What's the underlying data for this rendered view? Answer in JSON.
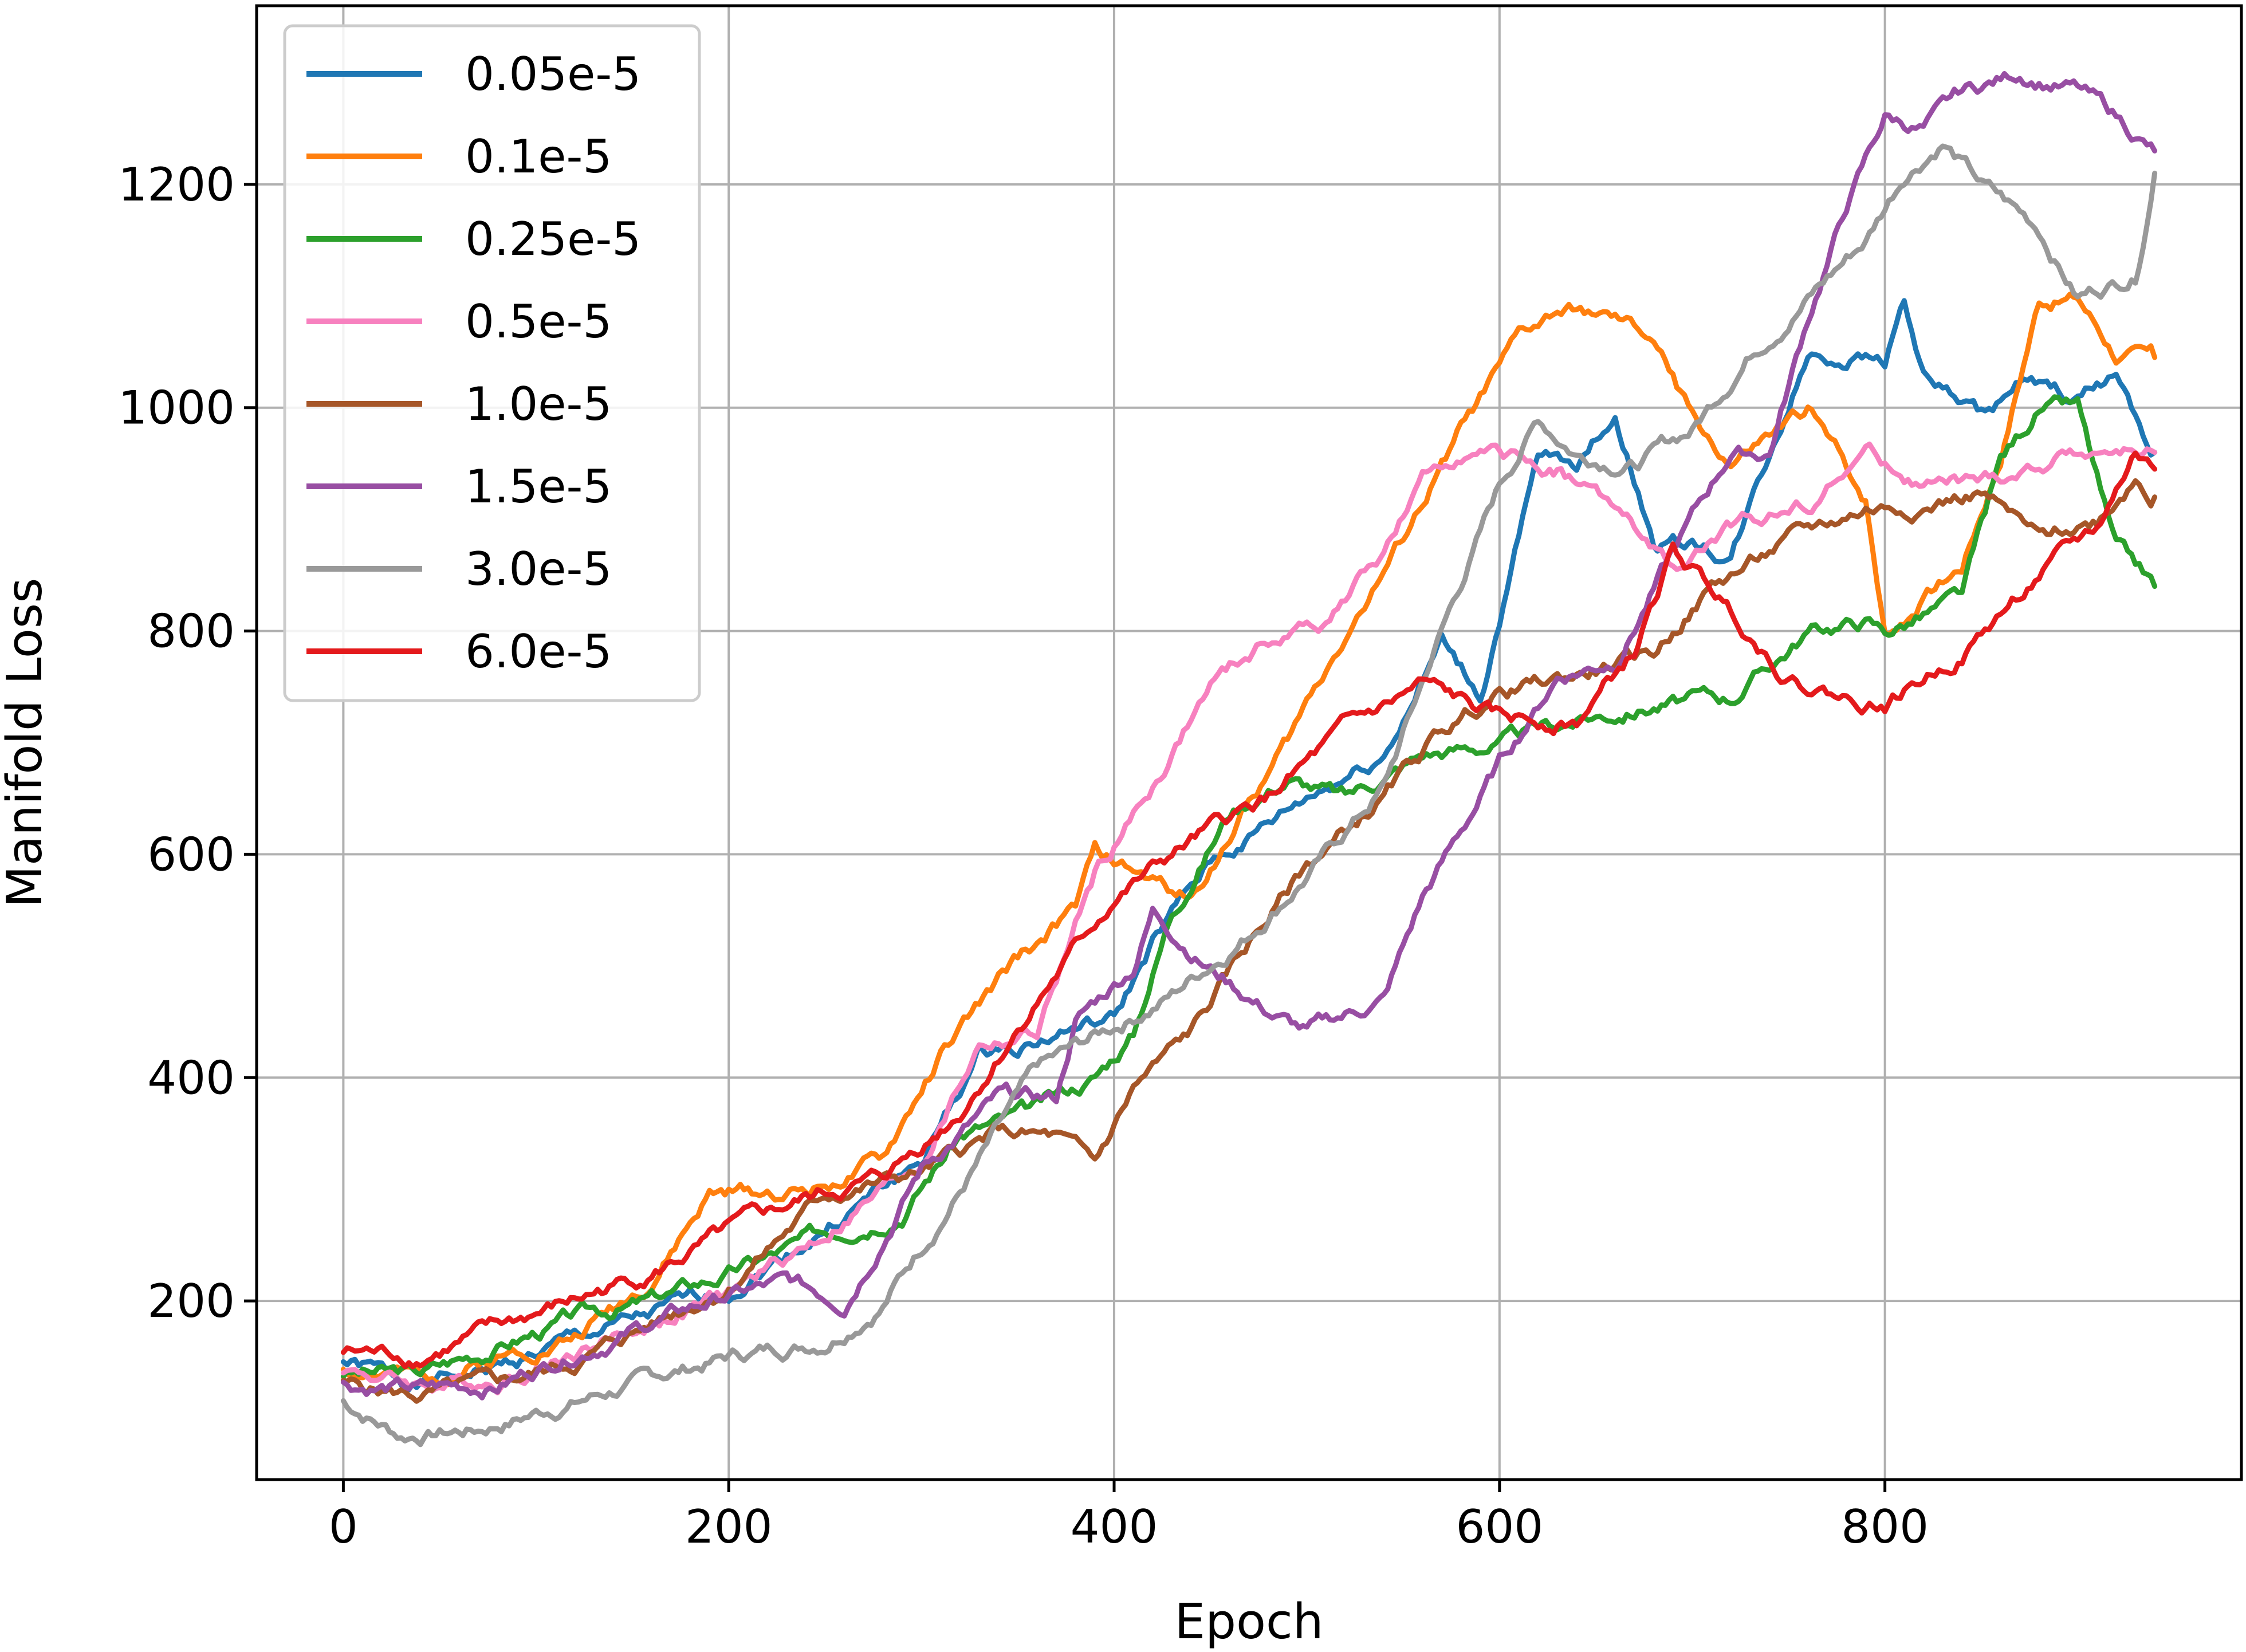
{
  "chart_data": {
    "type": "line",
    "title": "",
    "xlabel": "Epoch",
    "ylabel": "Manifold Loss",
    "xlim": [
      -45,
      985
    ],
    "ylim": [
      40,
      1360
    ],
    "xticks": [
      0,
      200,
      400,
      600,
      800
    ],
    "yticks": [
      200,
      400,
      600,
      800,
      1000,
      1200
    ],
    "grid": true,
    "legend_position": "top-left",
    "series": [
      {
        "name": "0.05e-5",
        "color": "#1f77b4",
        "points": [
          [
            0,
            145
          ],
          [
            40,
            125
          ],
          [
            80,
            140
          ],
          [
            120,
            165
          ],
          [
            160,
            185
          ],
          [
            200,
            210
          ],
          [
            250,
            265
          ],
          [
            300,
            325
          ],
          [
            330,
            420
          ],
          [
            350,
            430
          ],
          [
            380,
            445
          ],
          [
            400,
            450
          ],
          [
            420,
            520
          ],
          [
            450,
            590
          ],
          [
            500,
            650
          ],
          [
            540,
            690
          ],
          [
            570,
            790
          ],
          [
            590,
            740
          ],
          [
            620,
            950
          ],
          [
            640,
            950
          ],
          [
            660,
            995
          ],
          [
            680,
            880
          ],
          [
            700,
            880
          ],
          [
            720,
            865
          ],
          [
            760,
            1050
          ],
          [
            800,
            1045
          ],
          [
            810,
            1100
          ],
          [
            820,
            1030
          ],
          [
            850,
            990
          ],
          [
            870,
            1020
          ],
          [
            900,
            1005
          ],
          [
            920,
            1030
          ],
          [
            940,
            960
          ]
        ]
      },
      {
        "name": "0.1e-5",
        "color": "#ff7f0e",
        "points": [
          [
            0,
            140
          ],
          [
            40,
            130
          ],
          [
            80,
            150
          ],
          [
            120,
            170
          ],
          [
            160,
            220
          ],
          [
            190,
            295
          ],
          [
            240,
            300
          ],
          [
            280,
            325
          ],
          [
            310,
            420
          ],
          [
            350,
            505
          ],
          [
            380,
            550
          ],
          [
            390,
            600
          ],
          [
            420,
            575
          ],
          [
            440,
            560
          ],
          [
            460,
            620
          ],
          [
            490,
            700
          ],
          [
            520,
            800
          ],
          [
            550,
            880
          ],
          [
            580,
            980
          ],
          [
            610,
            1060
          ],
          [
            630,
            1085
          ],
          [
            650,
            1085
          ],
          [
            680,
            1060
          ],
          [
            700,
            990
          ],
          [
            720,
            950
          ],
          [
            760,
            995
          ],
          [
            790,
            920
          ],
          [
            800,
            800
          ],
          [
            840,
            860
          ],
          [
            860,
            960
          ],
          [
            880,
            1100
          ],
          [
            900,
            1100
          ],
          [
            920,
            1050
          ],
          [
            940,
            1045
          ]
        ]
      },
      {
        "name": "0.25e-5",
        "color": "#2ca02c",
        "points": [
          [
            0,
            135
          ],
          [
            40,
            135
          ],
          [
            80,
            160
          ],
          [
            120,
            185
          ],
          [
            160,
            200
          ],
          [
            200,
            225
          ],
          [
            250,
            260
          ],
          [
            290,
            285
          ],
          [
            320,
            350
          ],
          [
            360,
            370
          ],
          [
            390,
            400
          ],
          [
            410,
            440
          ],
          [
            430,
            550
          ],
          [
            460,
            640
          ],
          [
            490,
            670
          ],
          [
            520,
            650
          ],
          [
            560,
            690
          ],
          [
            600,
            700
          ],
          [
            640,
            720
          ],
          [
            680,
            735
          ],
          [
            720,
            740
          ],
          [
            760,
            800
          ],
          [
            790,
            810
          ],
          [
            800,
            800
          ],
          [
            840,
            830
          ],
          [
            860,
            950
          ],
          [
            880,
            1000
          ],
          [
            900,
            1000
          ],
          [
            920,
            870
          ],
          [
            940,
            840
          ]
        ]
      },
      {
        "name": "0.5e-5",
        "color": "#f781bf",
        "points": [
          [
            0,
            140
          ],
          [
            40,
            125
          ],
          [
            80,
            130
          ],
          [
            120,
            155
          ],
          [
            160,
            180
          ],
          [
            200,
            205
          ],
          [
            250,
            260
          ],
          [
            300,
            325
          ],
          [
            330,
            430
          ],
          [
            360,
            440
          ],
          [
            390,
            580
          ],
          [
            420,
            660
          ],
          [
            450,
            750
          ],
          [
            480,
            790
          ],
          [
            510,
            810
          ],
          [
            540,
            870
          ],
          [
            560,
            930
          ],
          [
            580,
            960
          ],
          [
            600,
            955
          ],
          [
            630,
            945
          ],
          [
            660,
            910
          ],
          [
            690,
            850
          ],
          [
            720,
            890
          ],
          [
            760,
            915
          ],
          [
            790,
            960
          ],
          [
            820,
            930
          ],
          [
            850,
            930
          ],
          [
            880,
            945
          ],
          [
            900,
            960
          ],
          [
            940,
            960
          ]
        ]
      },
      {
        "name": "1.0e-5",
        "color": "#a65628",
        "points": [
          [
            0,
            125
          ],
          [
            40,
            115
          ],
          [
            80,
            125
          ],
          [
            120,
            145
          ],
          [
            160,
            180
          ],
          [
            200,
            215
          ],
          [
            250,
            295
          ],
          [
            300,
            315
          ],
          [
            340,
            350
          ],
          [
            370,
            345
          ],
          [
            390,
            320
          ],
          [
            410,
            390
          ],
          [
            440,
            440
          ],
          [
            470,
            520
          ],
          [
            500,
            590
          ],
          [
            540,
            650
          ],
          [
            570,
            710
          ],
          [
            600,
            745
          ],
          [
            640,
            760
          ],
          [
            680,
            780
          ],
          [
            710,
            840
          ],
          [
            750,
            880
          ],
          [
            790,
            910
          ],
          [
            820,
            915
          ],
          [
            850,
            925
          ],
          [
            880,
            880
          ],
          [
            910,
            900
          ],
          [
            930,
            940
          ],
          [
            940,
            920
          ]
        ]
      },
      {
        "name": "1.5e-5",
        "color": "#984ea3",
        "points": [
          [
            0,
            125
          ],
          [
            40,
            120
          ],
          [
            80,
            125
          ],
          [
            120,
            155
          ],
          [
            160,
            180
          ],
          [
            200,
            205
          ],
          [
            230,
            215
          ],
          [
            260,
            200
          ],
          [
            300,
            320
          ],
          [
            340,
            380
          ],
          [
            370,
            380
          ],
          [
            380,
            450
          ],
          [
            410,
            500
          ],
          [
            420,
            550
          ],
          [
            450,
            500
          ],
          [
            480,
            460
          ],
          [
            500,
            440
          ],
          [
            540,
            470
          ],
          [
            560,
            560
          ],
          [
            600,
            680
          ],
          [
            630,
            760
          ],
          [
            660,
            775
          ],
          [
            690,
            870
          ],
          [
            720,
            960
          ],
          [
            740,
            960
          ],
          [
            760,
            1080
          ],
          [
            780,
            1180
          ],
          [
            800,
            1260
          ],
          [
            820,
            1250
          ],
          [
            840,
            1280
          ],
          [
            870,
            1300
          ],
          [
            900,
            1285
          ],
          [
            920,
            1260
          ],
          [
            940,
            1230
          ]
        ]
      },
      {
        "name": "3.0e-5",
        "color": "#999999",
        "points": [
          [
            0,
            110
          ],
          [
            30,
            80
          ],
          [
            70,
            85
          ],
          [
            110,
            105
          ],
          [
            150,
            125
          ],
          [
            200,
            150
          ],
          [
            250,
            165
          ],
          [
            280,
            200
          ],
          [
            320,
            300
          ],
          [
            360,
            405
          ],
          [
            400,
            445
          ],
          [
            430,
            475
          ],
          [
            470,
            530
          ],
          [
            510,
            600
          ],
          [
            540,
            660
          ],
          [
            570,
            800
          ],
          [
            600,
            930
          ],
          [
            620,
            990
          ],
          [
            640,
            960
          ],
          [
            670,
            950
          ],
          [
            700,
            980
          ],
          [
            730,
            1050
          ],
          [
            760,
            1100
          ],
          [
            790,
            1150
          ],
          [
            810,
            1210
          ],
          [
            830,
            1240
          ],
          [
            850,
            1200
          ],
          [
            880,
            1160
          ],
          [
            900,
            1100
          ],
          [
            930,
            1120
          ],
          [
            940,
            1210
          ]
        ]
      },
      {
        "name": "6.0e-5",
        "color": "#e41a1c",
        "points": [
          [
            0,
            155
          ],
          [
            40,
            150
          ],
          [
            80,
            175
          ],
          [
            120,
            200
          ],
          [
            160,
            225
          ],
          [
            200,
            260
          ],
          [
            240,
            290
          ],
          [
            280,
            310
          ],
          [
            320,
            370
          ],
          [
            360,
            470
          ],
          [
            400,
            560
          ],
          [
            440,
            610
          ],
          [
            480,
            650
          ],
          [
            520,
            710
          ],
          [
            560,
            750
          ],
          [
            600,
            720
          ],
          [
            640,
            720
          ],
          [
            670,
            780
          ],
          [
            690,
            870
          ],
          [
            720,
            820
          ],
          [
            750,
            760
          ],
          [
            780,
            740
          ],
          [
            800,
            735
          ],
          [
            840,
            780
          ],
          [
            880,
            850
          ],
          [
            910,
            890
          ],
          [
            930,
            960
          ],
          [
            940,
            945
          ]
        ]
      }
    ]
  }
}
